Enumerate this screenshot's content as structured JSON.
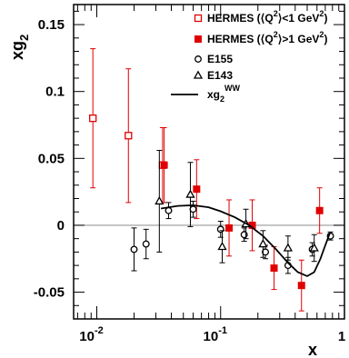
{
  "chart_data": {
    "type": "scatter",
    "x_scale": "log",
    "xlim": [
      0.0065,
      1.0
    ],
    "ylim": [
      -0.07,
      0.165
    ],
    "xlabel": "x",
    "ylabel_base": "xg",
    "ylabel_sub": "2",
    "x_ticks": [
      {
        "value": 0.01,
        "base": "10",
        "exp": "-2"
      },
      {
        "value": 0.1,
        "base": "10",
        "exp": "-1"
      },
      {
        "value": 1.0,
        "base": "1",
        "exp": ""
      }
    ],
    "y_ticks": [
      {
        "value": -0.05,
        "label": "-0.05"
      },
      {
        "value": 0,
        "label": "0"
      },
      {
        "value": 0.05,
        "label": "0.05"
      },
      {
        "value": 0.1,
        "label": "0.1"
      },
      {
        "value": 0.15,
        "label": "0.15"
      }
    ],
    "zero_line": true,
    "legend_position": "top-right",
    "legend": [
      {
        "key": "hermes_low",
        "base": "HERMES (⟨Q",
        "sup": "2",
        "tail": "⟩<1 GeV",
        "sup2": "2",
        "end": ")"
      },
      {
        "key": "hermes_high",
        "base": "HERMES (⟨Q",
        "sup": "2",
        "tail": "⟩>1 GeV",
        "sup2": "2",
        "end": ")"
      },
      {
        "key": "e155",
        "base": "E155",
        "sup": "",
        "tail": "",
        "sup2": "",
        "end": ""
      },
      {
        "key": "e143",
        "base": "E143",
        "sup": "",
        "tail": "",
        "sup2": "",
        "end": ""
      },
      {
        "key": "ww",
        "base": "xg",
        "sub": "2",
        "sup": "WW",
        "tail": "",
        "sup2": "",
        "end": ""
      }
    ],
    "series": [
      {
        "key": "hermes_low",
        "marker": "open-square",
        "color": "#e00000",
        "points": [
          {
            "x": 0.0093,
            "y": 0.08,
            "err": 0.052
          },
          {
            "x": 0.018,
            "y": 0.067,
            "err": 0.05
          },
          {
            "x": 0.034,
            "y": 0.045,
            "err": 0.028
          }
        ]
      },
      {
        "key": "hermes_high",
        "marker": "filled-square",
        "color": "#e00000",
        "points": [
          {
            "x": 0.035,
            "y": 0.045,
            "err": 0.028
          },
          {
            "x": 0.064,
            "y": 0.027,
            "err": 0.022
          },
          {
            "x": 0.117,
            "y": -0.002,
            "err": 0.021
          },
          {
            "x": 0.18,
            "y": 0.0,
            "err": 0.019
          },
          {
            "x": 0.27,
            "y": -0.032,
            "err": 0.016
          },
          {
            "x": 0.45,
            "y": -0.045,
            "err": 0.019
          },
          {
            "x": 0.63,
            "y": 0.011,
            "err": 0.017
          }
        ]
      },
      {
        "key": "e155",
        "marker": "open-circle",
        "color": "#000000",
        "points": [
          {
            "x": 0.02,
            "y": -0.018,
            "err": 0.016
          },
          {
            "x": 0.025,
            "y": -0.014,
            "err": 0.011
          },
          {
            "x": 0.038,
            "y": 0.011,
            "err": 0.006
          },
          {
            "x": 0.06,
            "y": 0.012,
            "err": 0.006
          },
          {
            "x": 0.1,
            "y": -0.003,
            "err": 0.006
          },
          {
            "x": 0.155,
            "y": -0.007,
            "err": 0.005
          },
          {
            "x": 0.23,
            "y": -0.02,
            "err": 0.005
          },
          {
            "x": 0.35,
            "y": -0.03,
            "err": 0.006
          },
          {
            "x": 0.55,
            "y": -0.018,
            "err": 0.005
          },
          {
            "x": 0.77,
            "y": -0.008,
            "err": 0.003
          }
        ]
      },
      {
        "key": "e143",
        "marker": "open-triangle",
        "color": "#000000",
        "points": [
          {
            "x": 0.032,
            "y": 0.018,
            "err": 0.038
          },
          {
            "x": 0.057,
            "y": 0.023,
            "err": 0.024
          },
          {
            "x": 0.103,
            "y": -0.016,
            "err": 0.012
          },
          {
            "x": 0.16,
            "y": 0.001,
            "err": 0.011
          },
          {
            "x": 0.22,
            "y": -0.014,
            "err": 0.01
          },
          {
            "x": 0.35,
            "y": -0.017,
            "err": 0.009
          },
          {
            "x": 0.57,
            "y": -0.017,
            "err": 0.01
          }
        ]
      },
      {
        "key": "ww",
        "marker": "line",
        "color": "#000000",
        "points": [
          {
            "x": 0.033,
            "y": 0.0125
          },
          {
            "x": 0.045,
            "y": 0.0145
          },
          {
            "x": 0.06,
            "y": 0.015
          },
          {
            "x": 0.08,
            "y": 0.0135
          },
          {
            "x": 0.1,
            "y": 0.0105
          },
          {
            "x": 0.13,
            "y": 0.006
          },
          {
            "x": 0.17,
            "y": 0.0
          },
          {
            "x": 0.22,
            "y": -0.008
          },
          {
            "x": 0.28,
            "y": -0.018
          },
          {
            "x": 0.35,
            "y": -0.028
          },
          {
            "x": 0.42,
            "y": -0.035
          },
          {
            "x": 0.5,
            "y": -0.038
          },
          {
            "x": 0.57,
            "y": -0.035
          },
          {
            "x": 0.64,
            "y": -0.025
          },
          {
            "x": 0.7,
            "y": -0.015
          },
          {
            "x": 0.76,
            "y": -0.006
          }
        ]
      }
    ]
  }
}
